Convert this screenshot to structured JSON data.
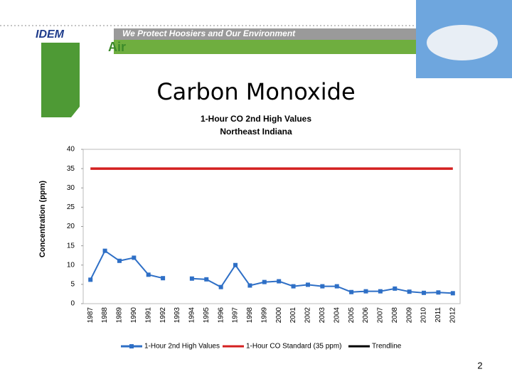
{
  "slide": {
    "banner": "We Protect Hoosiers and Our Environment",
    "logo": "IDEM",
    "section": "Air",
    "title": "Carbon Monoxide",
    "number": "2"
  },
  "chart_data": {
    "type": "line",
    "title": [
      "1-Hour CO 2nd High Values",
      "Northeast Indiana"
    ],
    "y_label": "Concentration (ppm)",
    "categories": [
      "1987",
      "1988",
      "1989",
      "1990",
      "1991",
      "1992",
      "1993",
      "1994",
      "1995",
      "1996",
      "1997",
      "1998",
      "1999",
      "2000",
      "2001",
      "2002",
      "2003",
      "2004",
      "2005",
      "2006",
      "2007",
      "2008",
      "2009",
      "2010",
      "2011",
      "2012"
    ],
    "series": [
      {
        "name": "1-Hour 2nd High Values",
        "color": "#2e6fc6",
        "marker": true,
        "values": [
          6.2,
          13.7,
          11.1,
          11.9,
          7.5,
          6.6,
          null,
          6.5,
          6.3,
          4.3,
          10,
          4.7,
          5.6,
          5.8,
          4.5,
          4.9,
          4.5,
          4.5,
          3,
          3.2,
          3.2,
          3.9,
          3.1,
          2.8,
          2.9,
          2.7
        ]
      },
      {
        "name": "1-Hour CO Standard (35 ppm)",
        "color": "#d42020",
        "marker": false,
        "values": [
          35,
          35,
          35,
          35,
          35,
          35,
          35,
          35,
          35,
          35,
          35,
          35,
          35,
          35,
          35,
          35,
          35,
          35,
          35,
          35,
          35,
          35,
          35,
          35,
          35,
          35
        ]
      },
      {
        "name": "Trendline",
        "color": "#000000",
        "marker": false,
        "values": [
          null,
          null,
          null,
          null,
          null,
          null,
          null,
          null,
          null,
          null,
          null,
          null,
          null,
          null,
          null,
          null,
          null,
          null,
          null,
          null,
          null,
          null,
          null,
          null,
          null,
          null
        ]
      }
    ],
    "ylim": [
      0,
      40
    ],
    "yticks": [
      0,
      5,
      10,
      15,
      20,
      25,
      30,
      35,
      40
    ],
    "grid": false,
    "legend": "bottom"
  }
}
